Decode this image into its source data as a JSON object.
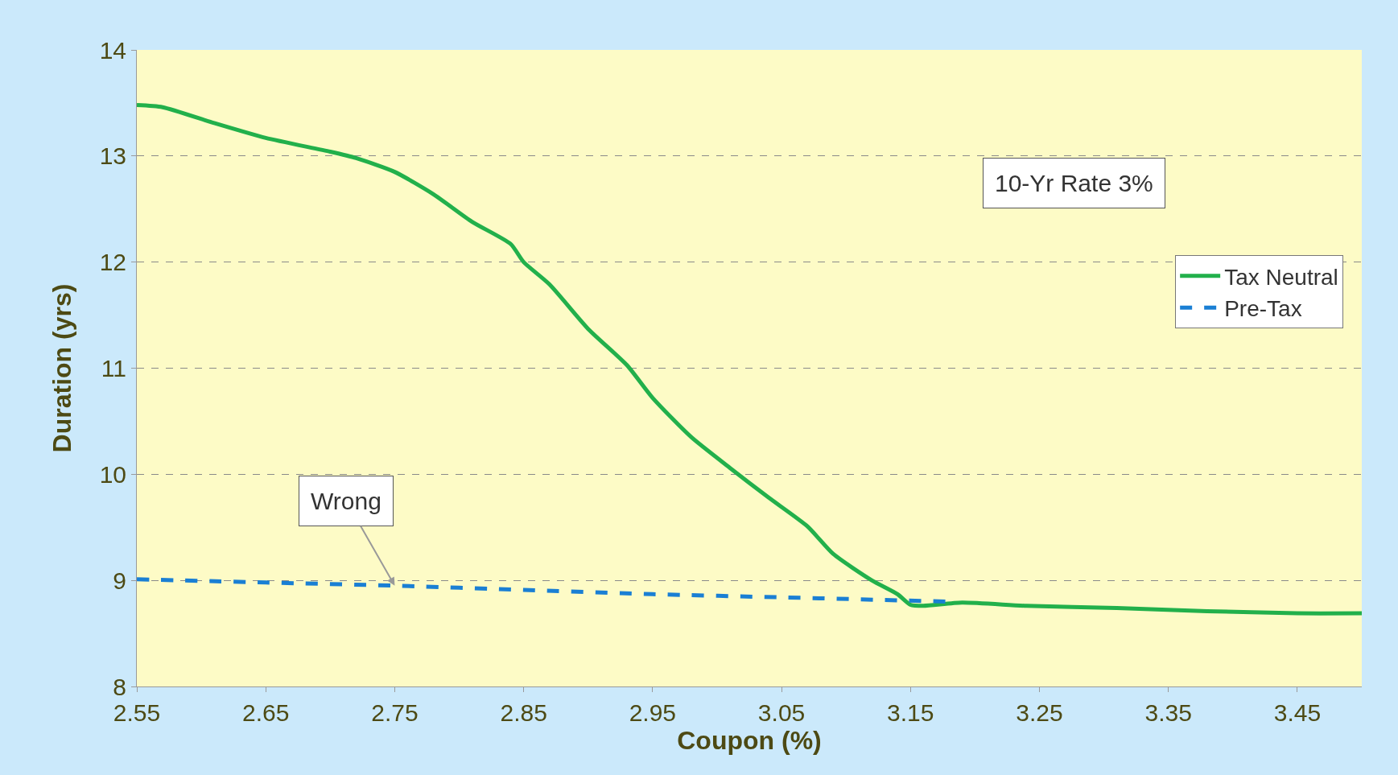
{
  "chart_data": {
    "type": "line",
    "xlabel": "Coupon (%)",
    "ylabel": "Duration (yrs)",
    "xlim": [
      2.55,
      3.5
    ],
    "xticks": [
      2.55,
      2.65,
      2.75,
      2.85,
      2.95,
      3.05,
      3.15,
      3.25,
      3.35,
      3.45
    ],
    "ylim": [
      8,
      14
    ],
    "yticks": [
      8,
      9,
      10,
      11,
      12,
      13,
      14
    ],
    "grid": "y",
    "legend": "right",
    "series": [
      {
        "name": "Tax Neutral",
        "color": "#22b04b",
        "line_style": "solid",
        "x": [
          2.55,
          2.57,
          2.61,
          2.65,
          2.7,
          2.72,
          2.75,
          2.78,
          2.81,
          2.84,
          2.85,
          2.87,
          2.9,
          2.93,
          2.95,
          2.98,
          3.01,
          3.04,
          3.07,
          3.09,
          3.12,
          3.14,
          3.15,
          3.16,
          3.19,
          3.24,
          3.31,
          3.38,
          3.45,
          3.5
        ],
        "values": [
          13.48,
          13.46,
          13.31,
          13.17,
          13.04,
          12.98,
          12.85,
          12.64,
          12.38,
          12.17,
          12.0,
          11.79,
          11.37,
          11.03,
          10.72,
          10.35,
          10.06,
          9.78,
          9.51,
          9.25,
          9.0,
          8.87,
          8.77,
          8.76,
          8.79,
          8.76,
          8.74,
          8.71,
          8.69,
          8.69
        ]
      },
      {
        "name": "Pre-Tax",
        "color": "#1a7fd4",
        "line_style": "dashed",
        "x": [
          2.55,
          2.65,
          2.75,
          2.85,
          2.95,
          3.05,
          3.18
        ],
        "values": [
          9.01,
          8.98,
          8.95,
          8.91,
          8.87,
          8.84,
          8.8
        ]
      }
    ],
    "annotations": [
      "10-Yr Rate 3%",
      {
        "text": "Wrong",
        "x": 2.75,
        "y": 8.95
      }
    ]
  }
}
